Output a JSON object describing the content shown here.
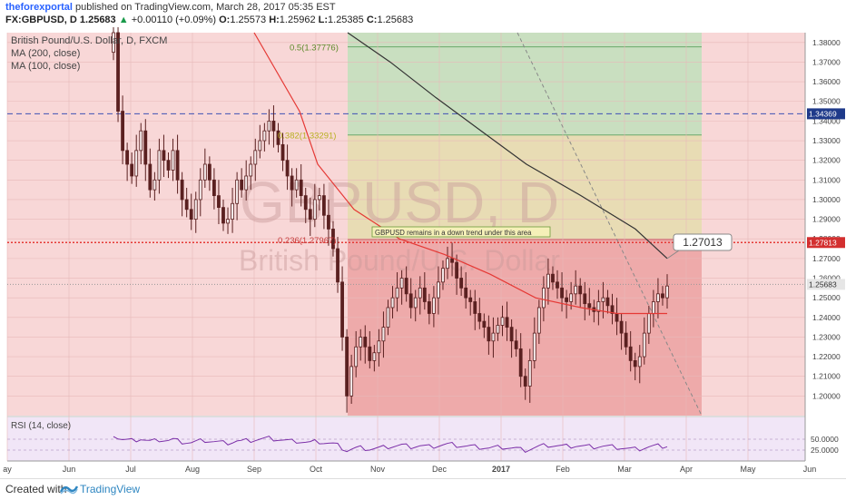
{
  "header": {
    "author": "theforexportal",
    "published_text": "published on TradingView.com, March 28, 2017 05:35 EST",
    "symbol_line": "FX:GBPUSD, D",
    "last": "1.25683",
    "change": "+0.00110 (+0.09%)",
    "open_label": "O:",
    "open": "1.25573",
    "high_label": "H:",
    "high": "1.25962",
    "low_label": "L:",
    "low": "1.25385",
    "close_label": "C:",
    "close": "1.25683"
  },
  "legend": {
    "title": "British Pound/U.S. Dollar, D, FXCM",
    "ma200": "MA (200, close)",
    "ma100": "MA (100, close)"
  },
  "watermark": {
    "symbol": "GBPUSD, D",
    "name": "British Pound/U.S. Dollar"
  },
  "annotations": {
    "fib_05": "0.5(1.37776)",
    "fib_0382": "0.382(1.33291)",
    "fib_0236": "0.236(1.27967)",
    "note": "GBPUSD remains in a down trend under this area",
    "callout": "1.27013"
  },
  "price_tags": {
    "blue": "1.34369",
    "red": "1.27813",
    "last": "1.25683"
  },
  "rsi_label": "RSI (14, close)",
  "footer": {
    "created": "Created with",
    "brand": "TradingView"
  },
  "colors": {
    "bg_zone": "#f8d7d7",
    "fib_green": "#c9dfc0",
    "fib_yellow": "#e8dcb4",
    "fib_red": "#eeaaaa",
    "candle": "#5a2020",
    "ma100": "#e53935",
    "ma200": "#333333",
    "blue_line": "#3f51b5",
    "red_line": "#e53935",
    "rsi_line": "#7b2fa8",
    "rsi_bg": "#f1e6f7"
  },
  "chart_data": {
    "type": "candlestick",
    "y_axis": {
      "min": 1.19,
      "max": 1.385,
      "ticks": [
        "1.38000",
        "1.37000",
        "1.36000",
        "1.35000",
        "1.34000",
        "1.33000",
        "1.32000",
        "1.31000",
        "1.30000",
        "1.29000",
        "1.28000",
        "1.27000",
        "1.26000",
        "1.25000",
        "1.24000",
        "1.23000",
        "1.22000",
        "1.21000",
        "1.20000"
      ]
    },
    "x_axis": {
      "labels": [
        "ay",
        "Jun",
        "Jul",
        "Aug",
        "Sep",
        "Oct",
        "Nov",
        "Dec",
        "2017",
        "Feb",
        "Mar",
        "Apr",
        "May",
        "Jun"
      ]
    },
    "rsi_axis": {
      "ticks": [
        "50.0000",
        "25.0000"
      ]
    },
    "horizontal_lines": [
      {
        "price": 1.34369,
        "style": "dashed",
        "color": "blue"
      },
      {
        "price": 1.27813,
        "style": "dotted",
        "color": "red"
      },
      {
        "price": 1.25683,
        "style": "dotted",
        "color": "gray"
      }
    ],
    "fib_levels": [
      {
        "ratio": 0.5,
        "price": 1.37776
      },
      {
        "ratio": 0.382,
        "price": 1.33291
      },
      {
        "ratio": 0.236,
        "price": 1.27967
      }
    ],
    "ma200_endpoint": 1.27013,
    "close_series": [
      1.385,
      1.345,
      1.325,
      1.318,
      1.312,
      1.325,
      1.335,
      1.318,
      1.305,
      1.31,
      1.325,
      1.32,
      1.315,
      1.325,
      1.31,
      1.3,
      1.295,
      1.29,
      1.3,
      1.31,
      1.318,
      1.31,
      1.302,
      1.296,
      1.288,
      1.29,
      1.298,
      1.31,
      1.305,
      1.312,
      1.318,
      1.325,
      1.33,
      1.335,
      1.34,
      1.335,
      1.328,
      1.32,
      1.312,
      1.305,
      1.31,
      1.302,
      1.295,
      1.29,
      1.3,
      1.302,
      1.292,
      1.285,
      1.275,
      1.258,
      1.23,
      1.2,
      1.215,
      1.225,
      1.23,
      1.225,
      1.218,
      1.222,
      1.228,
      1.235,
      1.245,
      1.25,
      1.255,
      1.26,
      1.252,
      1.245,
      1.25,
      1.255,
      1.248,
      1.242,
      1.25,
      1.258,
      1.265,
      1.27,
      1.268,
      1.26,
      1.255,
      1.25,
      1.248,
      1.242,
      1.238,
      1.235,
      1.228,
      1.232,
      1.236,
      1.24,
      1.235,
      1.228,
      1.224,
      1.21,
      1.205,
      1.218,
      1.232,
      1.245,
      1.255,
      1.262,
      1.258,
      1.255,
      1.25,
      1.248,
      1.252,
      1.256,
      1.252,
      1.247,
      1.245,
      1.243,
      1.248,
      1.25,
      1.246,
      1.242,
      1.238,
      1.232,
      1.225,
      1.218,
      1.215,
      1.22,
      1.232,
      1.242,
      1.248,
      1.252,
      1.25,
      1.256
    ]
  }
}
